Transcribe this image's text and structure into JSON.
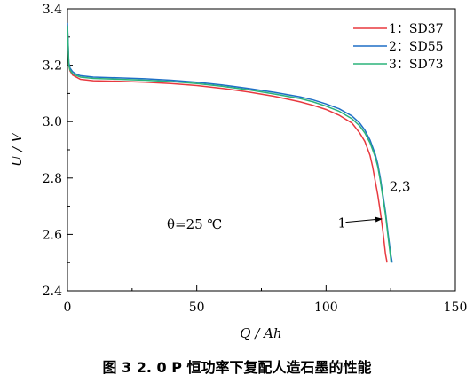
{
  "chart_data": {
    "type": "line",
    "xlabel": "Q / Ah",
    "ylabel": "U / V",
    "xlim": [
      0,
      150
    ],
    "ylim": [
      2.4,
      3.4
    ],
    "xticks": [
      "0",
      "50",
      "100",
      "150"
    ],
    "yticks": [
      "2.4",
      "2.6",
      "2.8",
      "3.0",
      "3.2",
      "3.4"
    ],
    "legend_position": "top-right",
    "annotation_text": "θ=25 ℃",
    "series": [
      {
        "name": "1：SD37",
        "color": "#e8393f",
        "x": [
          0,
          0.5,
          1,
          2,
          3,
          5,
          10,
          20,
          30,
          40,
          50,
          60,
          70,
          80,
          90,
          95,
          100,
          105,
          110,
          113,
          115,
          117,
          118,
          119,
          120,
          121,
          122,
          123,
          123.6
        ],
        "y": [
          3.34,
          3.2,
          3.18,
          3.165,
          3.16,
          3.15,
          3.145,
          3.143,
          3.14,
          3.135,
          3.128,
          3.118,
          3.105,
          3.09,
          3.07,
          3.058,
          3.043,
          3.023,
          2.995,
          2.96,
          2.93,
          2.88,
          2.84,
          2.79,
          2.74,
          2.68,
          2.61,
          2.53,
          2.5
        ]
      },
      {
        "name": "2：SD55",
        "color": "#1e6fc6",
        "x": [
          0,
          0.5,
          1,
          2,
          3,
          5,
          10,
          20,
          30,
          40,
          50,
          60,
          70,
          80,
          90,
          95,
          100,
          105,
          110,
          113,
          115,
          117,
          119,
          120,
          121,
          122,
          123,
          124,
          125,
          125.6
        ],
        "y": [
          3.35,
          3.21,
          3.19,
          3.177,
          3.17,
          3.163,
          3.158,
          3.155,
          3.152,
          3.147,
          3.14,
          3.13,
          3.118,
          3.104,
          3.088,
          3.077,
          3.063,
          3.046,
          3.02,
          2.995,
          2.97,
          2.935,
          2.885,
          2.85,
          2.8,
          2.74,
          2.68,
          2.6,
          2.53,
          2.5
        ]
      },
      {
        "name": "3：SD73",
        "color": "#2cb37a",
        "x": [
          0,
          0.5,
          1,
          2,
          3,
          5,
          10,
          20,
          30,
          40,
          50,
          60,
          70,
          80,
          90,
          95,
          100,
          105,
          110,
          113,
          115,
          117,
          119,
          120,
          121,
          122,
          123,
          124,
          124.8,
          125.2
        ],
        "y": [
          3.34,
          3.2,
          3.183,
          3.17,
          3.165,
          3.158,
          3.153,
          3.15,
          3.147,
          3.142,
          3.135,
          3.125,
          3.113,
          3.098,
          3.082,
          3.07,
          3.055,
          3.037,
          3.01,
          2.985,
          2.96,
          2.925,
          2.875,
          2.84,
          2.79,
          2.73,
          2.67,
          2.59,
          2.53,
          2.5
        ]
      }
    ],
    "annotations": [
      {
        "text": "1",
        "x": 104.5,
        "y": 2.64,
        "arrow_to": [
          121.5,
          2.655
        ]
      },
      {
        "text": "2,3",
        "x": 124.5,
        "y": 2.77
      }
    ]
  },
  "caption": "图 3   2. 0 P 恒功率下复配人造石墨的性能"
}
